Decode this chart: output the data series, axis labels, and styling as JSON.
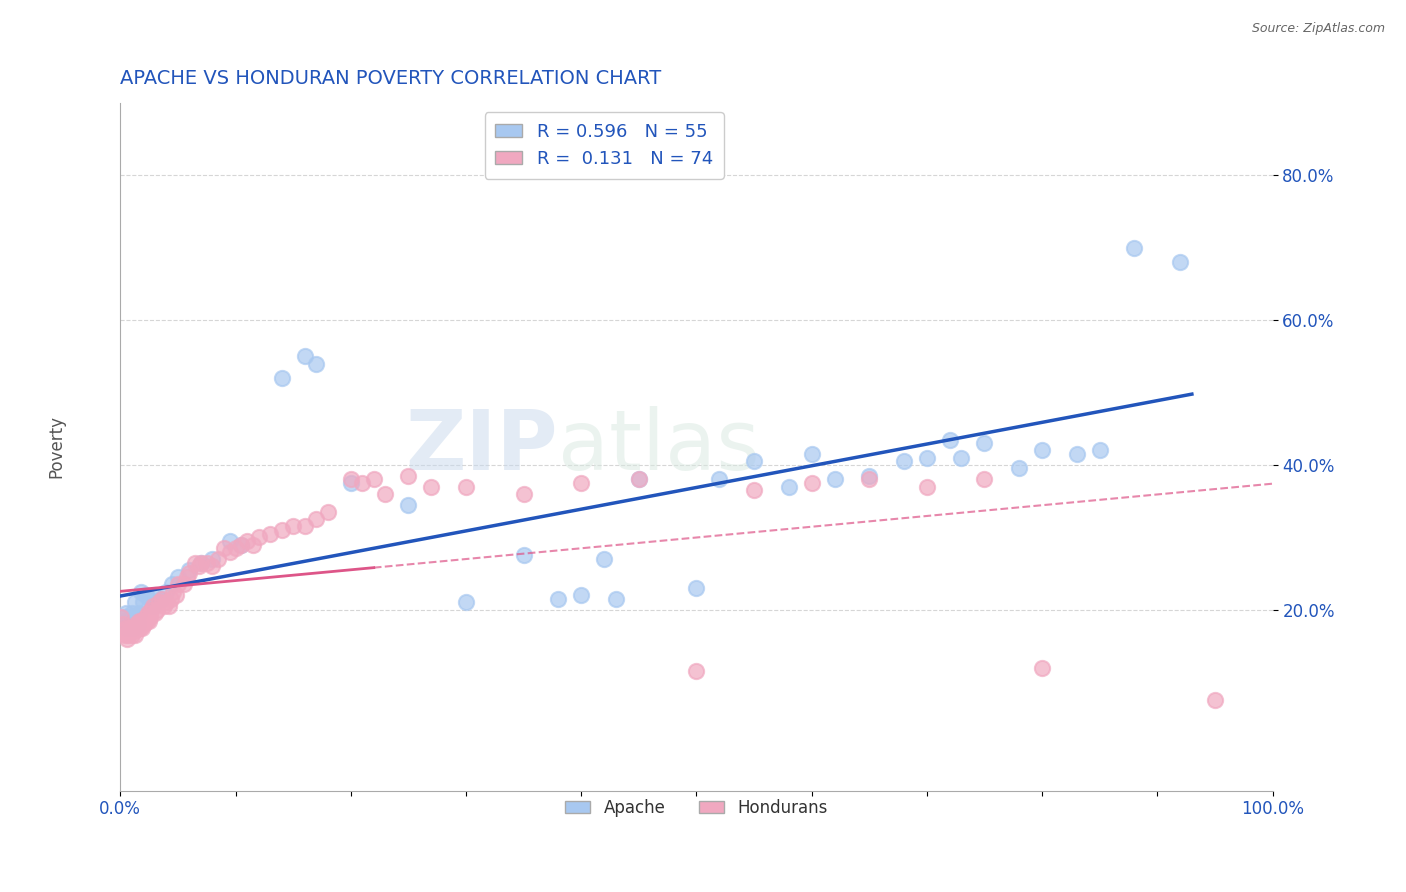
{
  "title": "APACHE VS HONDURAN POVERTY CORRELATION CHART",
  "source": "Source: ZipAtlas.com",
  "ylabel": "Poverty",
  "legend_apache": "Apache",
  "legend_hondurans": "Hondurans",
  "apache_R": "0.596",
  "apache_N": "55",
  "honduran_R": "0.131",
  "honduran_N": "74",
  "apache_color": "#a8c8f0",
  "honduran_color": "#f0a8c0",
  "apache_line_color": "#2255bb",
  "honduran_line_color": "#dd5588",
  "background_color": "#ffffff",
  "grid_color": "#cccccc",
  "title_color": "#2255bb",
  "watermark_zip": "ZIP",
  "watermark_atlas": "atlas",
  "xlim": [
    0.0,
    1.0
  ],
  "ylim": [
    -0.05,
    0.9
  ],
  "yticks": [
    0.2,
    0.4,
    0.6,
    0.8
  ],
  "ytick_labels": [
    "20.0%",
    "40.0%",
    "60.0%",
    "80.0%"
  ],
  "apache_scatter": [
    [
      0.003,
      0.185
    ],
    [
      0.004,
      0.19
    ],
    [
      0.005,
      0.195
    ],
    [
      0.006,
      0.175
    ],
    [
      0.007,
      0.18
    ],
    [
      0.008,
      0.185
    ],
    [
      0.009,
      0.19
    ],
    [
      0.01,
      0.195
    ],
    [
      0.011,
      0.175
    ],
    [
      0.012,
      0.19
    ],
    [
      0.013,
      0.21
    ],
    [
      0.015,
      0.18
    ],
    [
      0.016,
      0.195
    ],
    [
      0.018,
      0.225
    ],
    [
      0.02,
      0.21
    ],
    [
      0.022,
      0.22
    ],
    [
      0.025,
      0.215
    ],
    [
      0.028,
      0.205
    ],
    [
      0.03,
      0.22
    ],
    [
      0.035,
      0.215
    ],
    [
      0.04,
      0.225
    ],
    [
      0.045,
      0.235
    ],
    [
      0.05,
      0.245
    ],
    [
      0.06,
      0.255
    ],
    [
      0.07,
      0.265
    ],
    [
      0.08,
      0.27
    ],
    [
      0.095,
      0.295
    ],
    [
      0.105,
      0.29
    ],
    [
      0.14,
      0.52
    ],
    [
      0.16,
      0.55
    ],
    [
      0.17,
      0.54
    ],
    [
      0.2,
      0.375
    ],
    [
      0.25,
      0.345
    ],
    [
      0.3,
      0.21
    ],
    [
      0.35,
      0.275
    ],
    [
      0.38,
      0.215
    ],
    [
      0.4,
      0.22
    ],
    [
      0.42,
      0.27
    ],
    [
      0.43,
      0.215
    ],
    [
      0.45,
      0.38
    ],
    [
      0.5,
      0.23
    ],
    [
      0.52,
      0.38
    ],
    [
      0.55,
      0.405
    ],
    [
      0.58,
      0.37
    ],
    [
      0.6,
      0.415
    ],
    [
      0.62,
      0.38
    ],
    [
      0.65,
      0.385
    ],
    [
      0.68,
      0.405
    ],
    [
      0.7,
      0.41
    ],
    [
      0.72,
      0.435
    ],
    [
      0.73,
      0.41
    ],
    [
      0.75,
      0.43
    ],
    [
      0.78,
      0.395
    ],
    [
      0.8,
      0.42
    ],
    [
      0.83,
      0.415
    ],
    [
      0.85,
      0.42
    ],
    [
      0.88,
      0.7
    ],
    [
      0.92,
      0.68
    ]
  ],
  "honduran_scatter": [
    [
      0.001,
      0.19
    ],
    [
      0.002,
      0.18
    ],
    [
      0.003,
      0.17
    ],
    [
      0.004,
      0.165
    ],
    [
      0.005,
      0.175
    ],
    [
      0.006,
      0.16
    ],
    [
      0.007,
      0.165
    ],
    [
      0.008,
      0.175
    ],
    [
      0.009,
      0.17
    ],
    [
      0.01,
      0.165
    ],
    [
      0.011,
      0.175
    ],
    [
      0.012,
      0.17
    ],
    [
      0.013,
      0.165
    ],
    [
      0.014,
      0.18
    ],
    [
      0.015,
      0.175
    ],
    [
      0.016,
      0.185
    ],
    [
      0.017,
      0.175
    ],
    [
      0.018,
      0.185
    ],
    [
      0.019,
      0.175
    ],
    [
      0.02,
      0.185
    ],
    [
      0.021,
      0.18
    ],
    [
      0.022,
      0.19
    ],
    [
      0.023,
      0.185
    ],
    [
      0.024,
      0.195
    ],
    [
      0.025,
      0.185
    ],
    [
      0.026,
      0.19
    ],
    [
      0.027,
      0.2
    ],
    [
      0.028,
      0.205
    ],
    [
      0.03,
      0.195
    ],
    [
      0.032,
      0.2
    ],
    [
      0.034,
      0.21
    ],
    [
      0.036,
      0.215
    ],
    [
      0.038,
      0.205
    ],
    [
      0.04,
      0.21
    ],
    [
      0.042,
      0.205
    ],
    [
      0.044,
      0.215
    ],
    [
      0.046,
      0.225
    ],
    [
      0.048,
      0.22
    ],
    [
      0.05,
      0.235
    ],
    [
      0.055,
      0.235
    ],
    [
      0.058,
      0.245
    ],
    [
      0.06,
      0.25
    ],
    [
      0.065,
      0.265
    ],
    [
      0.068,
      0.26
    ],
    [
      0.07,
      0.265
    ],
    [
      0.075,
      0.265
    ],
    [
      0.08,
      0.26
    ],
    [
      0.085,
      0.27
    ],
    [
      0.09,
      0.285
    ],
    [
      0.095,
      0.28
    ],
    [
      0.1,
      0.285
    ],
    [
      0.105,
      0.29
    ],
    [
      0.11,
      0.295
    ],
    [
      0.115,
      0.29
    ],
    [
      0.12,
      0.3
    ],
    [
      0.13,
      0.305
    ],
    [
      0.14,
      0.31
    ],
    [
      0.15,
      0.315
    ],
    [
      0.16,
      0.315
    ],
    [
      0.17,
      0.325
    ],
    [
      0.18,
      0.335
    ],
    [
      0.2,
      0.38
    ],
    [
      0.21,
      0.375
    ],
    [
      0.22,
      0.38
    ],
    [
      0.23,
      0.36
    ],
    [
      0.25,
      0.385
    ],
    [
      0.27,
      0.37
    ],
    [
      0.3,
      0.37
    ],
    [
      0.35,
      0.36
    ],
    [
      0.4,
      0.375
    ],
    [
      0.45,
      0.38
    ],
    [
      0.5,
      0.115
    ],
    [
      0.55,
      0.365
    ],
    [
      0.6,
      0.375
    ],
    [
      0.65,
      0.38
    ],
    [
      0.7,
      0.37
    ],
    [
      0.75,
      0.38
    ],
    [
      0.8,
      0.12
    ],
    [
      0.95,
      0.075
    ]
  ]
}
